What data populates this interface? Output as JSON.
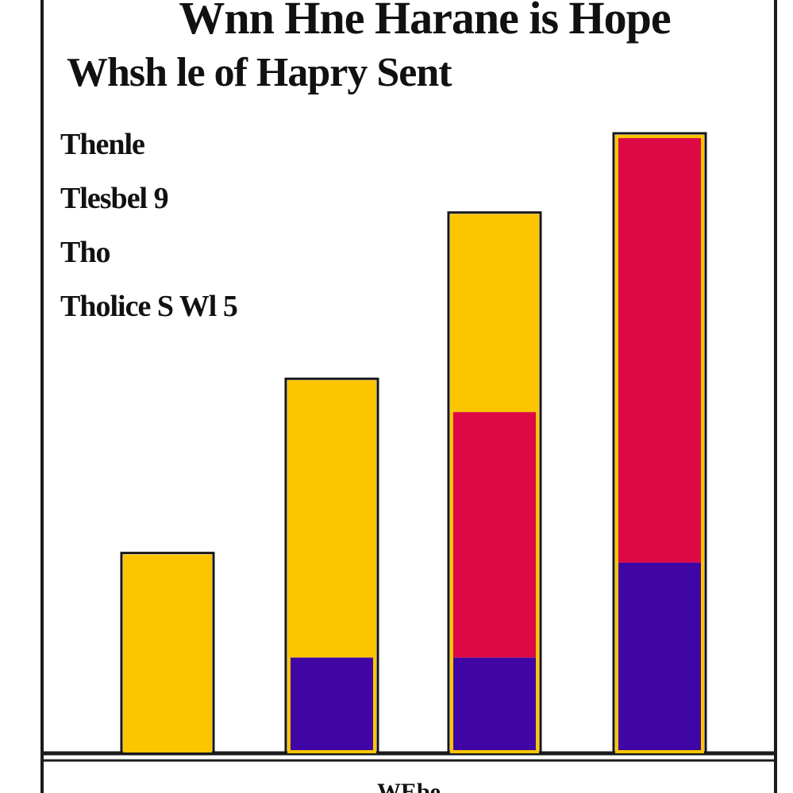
{
  "title": {
    "line1": "Wnn Hne Harane is Hope",
    "line2": "Whsh le of Hapry Sent"
  },
  "annotations": [
    "Thenle",
    "Tlesbel 9",
    "Tho",
    "Tholice S Wl 5"
  ],
  "xlabel": "WEbe",
  "colors": {
    "yellow": "#fdc500",
    "crimson": "#dc0945",
    "purple": "#3f06a5",
    "outline": "#161616",
    "frame": "#1b1b1b"
  },
  "chart_data": {
    "type": "bar",
    "stacked": true,
    "categories": [
      "",
      "",
      "",
      ""
    ],
    "series": [
      {
        "color": "#3f06a5",
        "values": [
          0,
          1.2,
          1.2,
          2.4
        ]
      },
      {
        "color": "#dc0945",
        "values": [
          0,
          0,
          3.1,
          5.4
        ]
      },
      {
        "color": "#fdc500",
        "values": [
          2.5,
          3.5,
          2.5,
          0
        ]
      }
    ],
    "ylim": [
      0,
      7.9
    ],
    "xlabel": "WEbe",
    "ylabel": "",
    "grid": false,
    "legend": "none"
  }
}
